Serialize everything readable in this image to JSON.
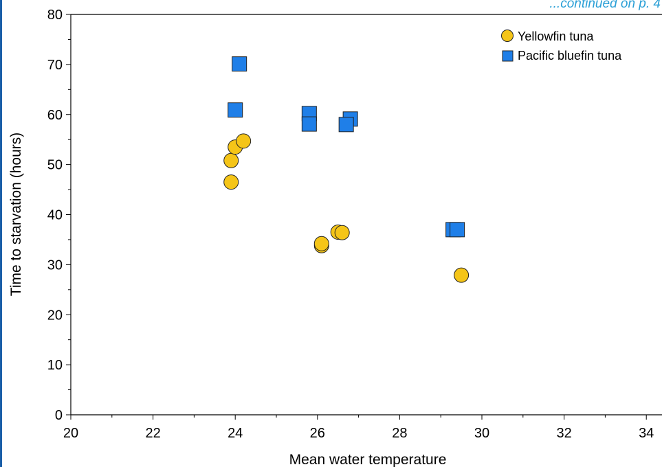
{
  "header_note": "...continued on p. 4",
  "chart_data": {
    "type": "scatter",
    "xlabel": "Mean water temperature",
    "ylabel": "Time to starvation (hours)",
    "xlim": [
      20,
      35
    ],
    "ylim": [
      0,
      80
    ],
    "xticks": [
      "20",
      "22",
      "24",
      "26",
      "28",
      "30",
      "32",
      "34"
    ],
    "yticks": [
      "0",
      "10",
      "20",
      "30",
      "40",
      "50",
      "60",
      "70",
      "80"
    ],
    "legend_position": "top-right",
    "grid": false,
    "series": [
      {
        "name": "Yellowfin tuna",
        "marker": "circle",
        "color": "#f5c518",
        "points": [
          {
            "x": 23.9,
            "y": 46.5
          },
          {
            "x": 23.9,
            "y": 50.8
          },
          {
            "x": 24.0,
            "y": 53.5
          },
          {
            "x": 24.2,
            "y": 54.7
          },
          {
            "x": 26.1,
            "y": 33.8
          },
          {
            "x": 26.1,
            "y": 34.2
          },
          {
            "x": 26.5,
            "y": 36.5
          },
          {
            "x": 26.6,
            "y": 36.4
          },
          {
            "x": 29.5,
            "y": 27.9
          }
        ]
      },
      {
        "name": "Pacific bluefin tuna",
        "marker": "square",
        "color": "#1f7fe8",
        "points": [
          {
            "x": 24.1,
            "y": 70.1
          },
          {
            "x": 24.0,
            "y": 60.9
          },
          {
            "x": 25.8,
            "y": 60.2
          },
          {
            "x": 25.8,
            "y": 58.1
          },
          {
            "x": 26.8,
            "y": 59.1
          },
          {
            "x": 26.7,
            "y": 58.0
          },
          {
            "x": 29.3,
            "y": 37.0
          },
          {
            "x": 29.4,
            "y": 37.0
          }
        ]
      }
    ]
  }
}
